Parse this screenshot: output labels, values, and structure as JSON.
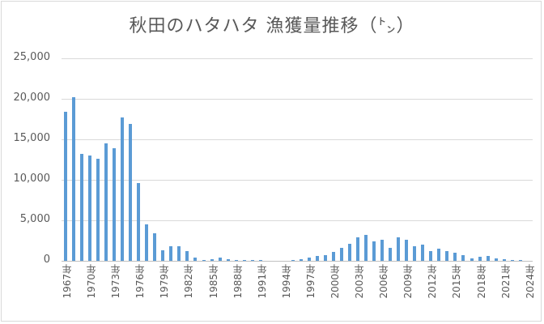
{
  "chart_data": {
    "type": "bar",
    "title": "秋田のハタハタ 漁獲量推移（㌧）",
    "xlabel": "",
    "ylabel": "",
    "ylim": [
      0,
      25000
    ],
    "grid": true,
    "legend": null,
    "y_ticks": [
      "0",
      "5,000",
      "10,000",
      "15,000",
      "20,000",
      "25,000"
    ],
    "x_tick_labels": [
      "1967年",
      "1970年",
      "1973年",
      "1976年",
      "1979年",
      "1982年",
      "1985年",
      "1988年",
      "1991年",
      "1994年",
      "1997年",
      "2000年",
      "2003年",
      "2006年",
      "2009年",
      "2012年",
      "2015年",
      "2018年",
      "2021年",
      "2024年"
    ],
    "categories": [
      1967,
      1968,
      1969,
      1970,
      1971,
      1972,
      1973,
      1974,
      1975,
      1976,
      1977,
      1978,
      1979,
      1980,
      1981,
      1982,
      1983,
      1984,
      1985,
      1986,
      1987,
      1988,
      1989,
      1990,
      1991,
      1992,
      1993,
      1994,
      1995,
      1996,
      1997,
      1998,
      1999,
      2000,
      2001,
      2002,
      2003,
      2004,
      2005,
      2006,
      2007,
      2008,
      2009,
      2010,
      2011,
      2012,
      2013,
      2014,
      2015,
      2016,
      2017,
      2018,
      2019,
      2020,
      2021,
      2022,
      2023,
      2024
    ],
    "values": [
      18400,
      20200,
      13200,
      13000,
      12600,
      14500,
      13900,
      17700,
      16900,
      9600,
      4500,
      3400,
      1300,
      1800,
      1800,
      1200,
      360,
      70,
      160,
      360,
      190,
      130,
      110,
      30,
      70,
      0,
      0,
      0,
      140,
      240,
      440,
      600,
      720,
      1150,
      1600,
      2100,
      2900,
      3250,
      2400,
      2600,
      1600,
      2900,
      2600,
      1800,
      2000,
      1200,
      1500,
      1200,
      1000,
      750,
      350,
      500,
      600,
      350,
      200,
      100,
      50,
      0
    ],
    "bar_color": "#5b9bd5"
  }
}
